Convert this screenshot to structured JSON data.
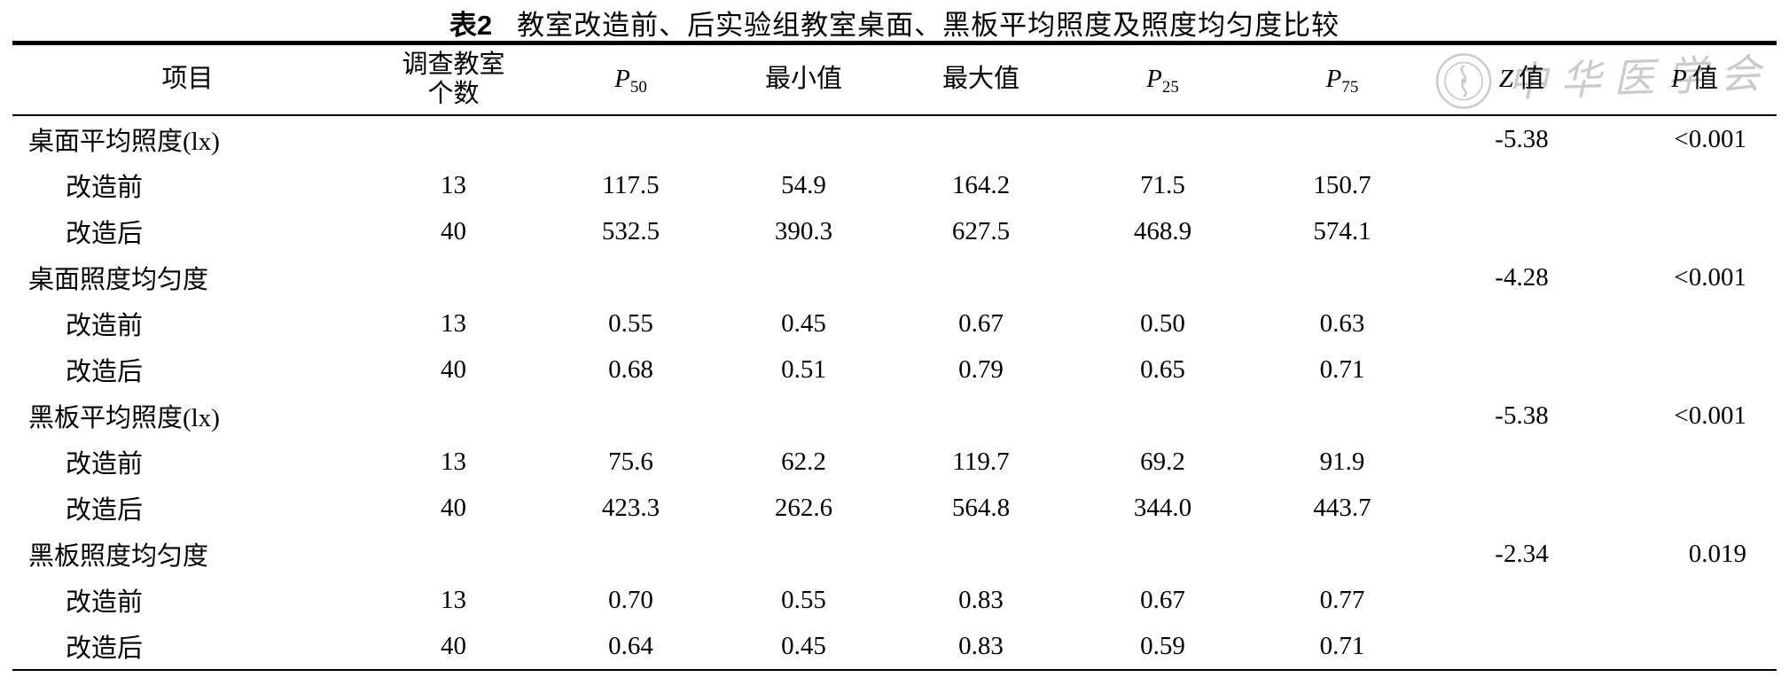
{
  "page": {
    "background": "#ffffff",
    "text_color": "#000000"
  },
  "title": {
    "label": "表2",
    "text": "教室改造前、后实验组教室桌面、黑板平均照度及照度均匀度比较"
  },
  "watermark": {
    "text": "中华医学会",
    "color": "#c2c2c2",
    "icon": "cma-seal-icon"
  },
  "table": {
    "headers": [
      {
        "id": "item",
        "text": "项目"
      },
      {
        "id": "count",
        "line1": "调查教室",
        "line2": "个数"
      },
      {
        "id": "p50",
        "var": "P",
        "sub": "50"
      },
      {
        "id": "min",
        "text": "最小值"
      },
      {
        "id": "max",
        "text": "最大值"
      },
      {
        "id": "p25",
        "var": "P",
        "sub": "25"
      },
      {
        "id": "p75",
        "var": "P",
        "sub": "75"
      },
      {
        "id": "z",
        "var": "Z",
        "text": "值"
      },
      {
        "id": "p",
        "var": "P",
        "text": "值"
      }
    ],
    "rows": [
      {
        "type": "group",
        "item": "桌面平均照度(lx)",
        "z": "-5.38",
        "p": "<0.001"
      },
      {
        "type": "data",
        "item": "改造前",
        "count": "13",
        "p50": "117.5",
        "min": "54.9",
        "max": "164.2",
        "p25": "71.5",
        "p75": "150.7"
      },
      {
        "type": "data",
        "item": "改造后",
        "count": "40",
        "p50": "532.5",
        "min": "390.3",
        "max": "627.5",
        "p25": "468.9",
        "p75": "574.1"
      },
      {
        "type": "group",
        "item": "桌面照度均匀度",
        "z": "-4.28",
        "p": "<0.001"
      },
      {
        "type": "data",
        "item": "改造前",
        "count": "13",
        "p50": "0.55",
        "min": "0.45",
        "max": "0.67",
        "p25": "0.50",
        "p75": "0.63"
      },
      {
        "type": "data",
        "item": "改造后",
        "count": "40",
        "p50": "0.68",
        "min": "0.51",
        "max": "0.79",
        "p25": "0.65",
        "p75": "0.71"
      },
      {
        "type": "group",
        "item": "黑板平均照度(lx)",
        "z": "-5.38",
        "p": "<0.001"
      },
      {
        "type": "data",
        "item": "改造前",
        "count": "13",
        "p50": "75.6",
        "min": "62.2",
        "max": "119.7",
        "p25": "69.2",
        "p75": "91.9"
      },
      {
        "type": "data",
        "item": "改造后",
        "count": "40",
        "p50": "423.3",
        "min": "262.6",
        "max": "564.8",
        "p25": "344.0",
        "p75": "443.7"
      },
      {
        "type": "group",
        "item": "黑板照度均匀度",
        "z": "-2.34",
        "p": "0.019"
      },
      {
        "type": "data",
        "item": "改造前",
        "count": "13",
        "p50": "0.70",
        "min": "0.55",
        "max": "0.83",
        "p25": "0.67",
        "p75": "0.77"
      },
      {
        "type": "data",
        "item": "改造后",
        "count": "40",
        "p50": "0.64",
        "min": "0.45",
        "max": "0.83",
        "p25": "0.59",
        "p75": "0.71"
      }
    ]
  }
}
